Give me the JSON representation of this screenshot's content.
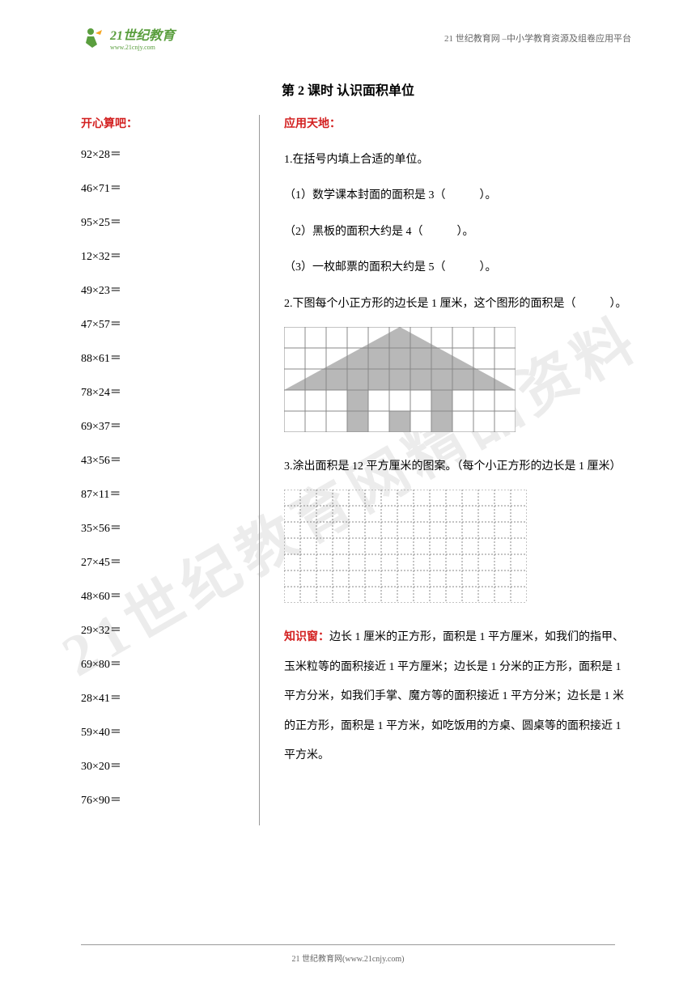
{
  "header": {
    "logo_main": "21世纪教育",
    "logo_sub": "www.21cnjy.com",
    "right_text": "21 世纪教育网 –中小学教育资源及组卷应用平台"
  },
  "title": "第 2 课时  认识面积单位",
  "watermark": "21世纪教育网精品资料",
  "left": {
    "header": "开心算吧：",
    "equations": [
      "92×28＝",
      "46×71＝",
      "95×25＝",
      "12×32＝",
      "49×23＝",
      "47×57＝",
      "88×61＝",
      "78×24＝",
      "69×37＝",
      "43×56＝",
      "87×11＝",
      "35×56＝",
      "27×45＝",
      "48×60＝",
      "29×32＝",
      "69×80＝",
      "28×41＝",
      "59×40＝",
      "30×20＝",
      "76×90＝"
    ]
  },
  "right": {
    "header": "应用天地：",
    "p1": "1.在括号内填上合适的单位。",
    "p1_1": "（1）数学课本封面的面积是 3（　　　）。",
    "p1_2": "（2）黑板的面积大约是 4（　　　）。",
    "p1_3": "（3）一枚邮票的面积大约是 5（　　　）。",
    "p2": "2.下图每个小正方形的边长是 1 厘米，这个图形的面积是（　　　）。",
    "p3": "3.涂出面积是 12 平方厘米的图案。（每个小正方形的边长是 1 厘米）",
    "knowledge_label": "知识窗：",
    "knowledge_text": "边长 1 厘米的正方形，面积是 1 平方厘米，如我们的指甲、玉米粒等的面积接近 1 平方厘米；边长是 1 分米的正方形，面积是 1 平方分米，如我们手掌、魔方等的面积接近 1 平方分米；边长是 1 米的正方形，面积是 1 平方米，如吃饭用的方桌、圆桌等的面积接近 1 平方米。"
  },
  "house_figure": {
    "cell_size": 26,
    "cols": 11,
    "rows": 5,
    "border_color": "#888888",
    "fill_color": "#b8b8b8",
    "bg_color": "#ffffff",
    "shaded_cells": [
      [
        0,
        5
      ],
      [
        1,
        4
      ],
      [
        1,
        5
      ],
      [
        1,
        6
      ],
      [
        2,
        3
      ],
      [
        2,
        4
      ],
      [
        2,
        5
      ],
      [
        2,
        6
      ],
      [
        2,
        7
      ],
      [
        3,
        0
      ],
      [
        3,
        1
      ],
      [
        3,
        2
      ],
      [
        3,
        3
      ],
      [
        3,
        7
      ],
      [
        3,
        8
      ],
      [
        3,
        9
      ],
      [
        3,
        10
      ],
      [
        4,
        3
      ],
      [
        4,
        7
      ],
      [
        4,
        5
      ]
    ]
  },
  "grid_figure": {
    "cell_size": 20,
    "cols": 15,
    "rows": 7,
    "border_color": "#888888",
    "bg_color": "#ffffff",
    "dash": "2,2"
  },
  "footer": {
    "text": "21 世纪教育网(www.21cnjy.com)"
  },
  "colors": {
    "red": "#d32020",
    "green": "#5a9e3e",
    "text": "#000000",
    "gray": "#666666"
  }
}
